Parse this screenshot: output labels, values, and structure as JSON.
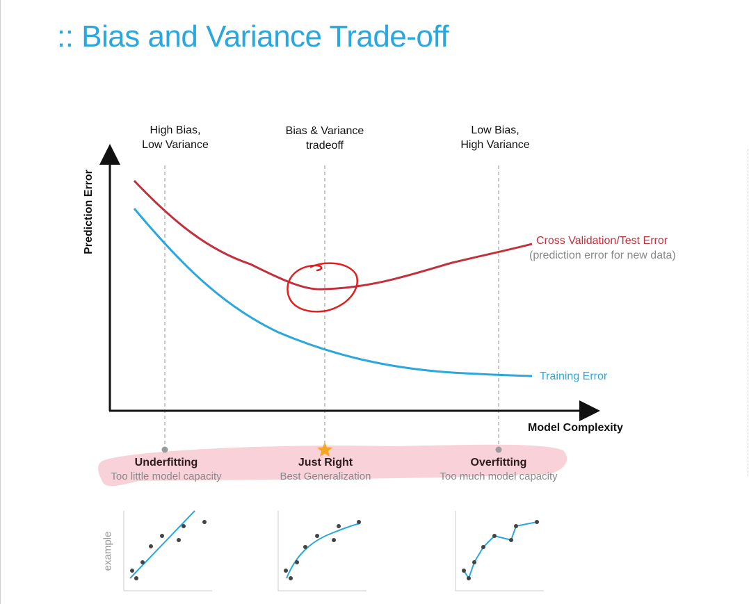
{
  "title": ":: Bias and Variance Trade-off",
  "headers": {
    "left": [
      "High Bias,",
      "Low Variance"
    ],
    "middle": [
      "Bias & Variance",
      "tradeoff"
    ],
    "right": [
      "Low Bias,",
      "High Variance"
    ]
  },
  "axes": {
    "ylabel": "Prediction Error",
    "xlabel": "Model Complexity"
  },
  "curves": {
    "test_label": "Cross Validation/Test Error",
    "test_sublabel": "(prediction error for new data)",
    "train_label": "Training Error",
    "test_color": "#c2303c",
    "train_color": "#2aa7dc"
  },
  "regimes": [
    {
      "name": "Underfitting",
      "desc": "Too little model capacity",
      "marker": "dot"
    },
    {
      "name": "Just Right",
      "desc": "Best Generalization",
      "marker": "star-icon"
    },
    {
      "name": "Overfitting",
      "desc": "Too much model capacity",
      "marker": "dot"
    }
  ],
  "example_label": "example",
  "colors": {
    "title": "#2aa7dc",
    "annotation": "#e02020",
    "highlight": "#f7c6cf"
  }
}
